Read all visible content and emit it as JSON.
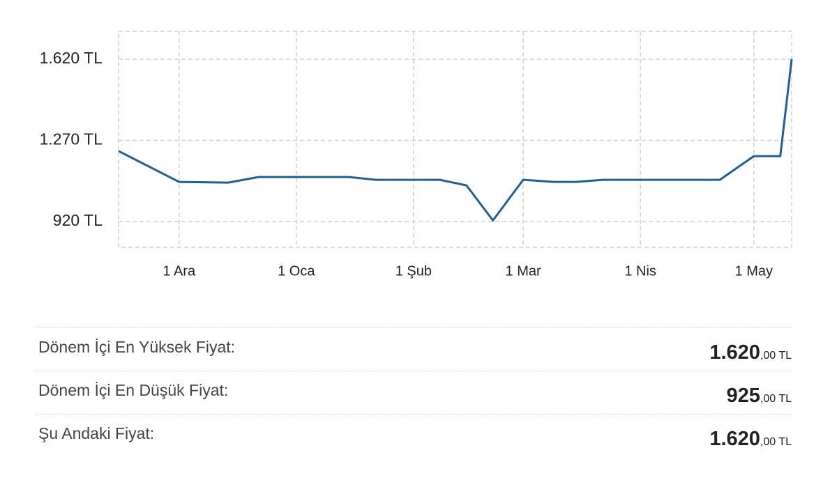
{
  "chart_data": {
    "type": "line",
    "x": [
      "11-15",
      "12-01",
      "12-14",
      "12-22",
      "01-15",
      "01-22",
      "02-08",
      "02-15",
      "02-22",
      "03-01",
      "03-09",
      "03-15",
      "03-22",
      "04-22",
      "05-01",
      "05-08",
      "05-11"
    ],
    "values": [
      1224,
      1091,
      1088,
      1112,
      1112,
      1100,
      1100,
      1076,
      925,
      1100,
      1091,
      1091,
      1100,
      1100,
      1202,
      1202,
      1620
    ],
    "color": "#1f5f95",
    "xlim": [
      "11-15",
      "05-11"
    ],
    "xticks": [
      {
        "value": "12-01",
        "label": "1 Ara"
      },
      {
        "value": "01-01",
        "label": "1 Oca"
      },
      {
        "value": "02-01",
        "label": "1 Şub"
      },
      {
        "value": "03-01",
        "label": "1 Mar"
      },
      {
        "value": "04-01",
        "label": "1 Nis"
      },
      {
        "value": "05-01",
        "label": "1 May"
      }
    ],
    "ylim": [
      809,
      1740
    ],
    "yticks": [
      {
        "value": 920,
        "label": "920 TL"
      },
      {
        "value": 1270,
        "label": "1.270 TL"
      },
      {
        "value": 1620,
        "label": "1.620 TL"
      }
    ],
    "grid": true
  },
  "summary": {
    "rows": [
      {
        "label": "Dönem İçi En Yüksek Fiyat:",
        "value_main": "1.620",
        "value_decimal": ",00 TL"
      },
      {
        "label": "Dönem İçi En Düşük Fiyat:",
        "value_main": "925",
        "value_decimal": ",00 TL"
      },
      {
        "label": "Şu Andaki Fiyat:",
        "value_main": "1.620",
        "value_decimal": ",00 TL"
      }
    ]
  }
}
